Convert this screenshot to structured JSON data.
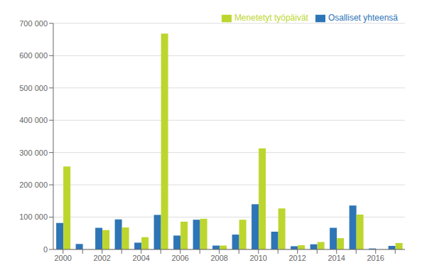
{
  "chart_data": {
    "type": "bar",
    "categories": [
      "2000",
      null,
      "2002",
      null,
      "2004",
      null,
      "2006",
      null,
      "2008",
      null,
      "2010",
      null,
      "2012",
      null,
      "2014",
      null,
      "2016",
      null
    ],
    "series": [
      {
        "name": "Osalliset yhteensä",
        "color": "#2e75b6",
        "values": [
          82000,
          17000,
          67000,
          93000,
          21000,
          107000,
          43000,
          92000,
          12000,
          46000,
          140000,
          55000,
          10000,
          16000,
          67000,
          136000,
          3000,
          11000
        ]
      },
      {
        "name": "Menetetyt työpäivät",
        "color": "#bdd62e",
        "values": [
          257000,
          0,
          60000,
          68000,
          38000,
          668000,
          86000,
          95000,
          12000,
          92000,
          313000,
          127000,
          13000,
          23000,
          35000,
          108000,
          0,
          20000
        ]
      }
    ],
    "ylim": [
      0,
      700000
    ],
    "yticks": [
      0,
      {
        "value": 100000,
        "label": "100 000"
      },
      {
        "value": 200000,
        "label": "200 000"
      },
      {
        "value": 300000,
        "label": "300 000"
      },
      {
        "value": 400000,
        "label": "400 000"
      },
      {
        "value": 500000,
        "label": "500 000"
      },
      {
        "value": 600000,
        "label": "600 000"
      },
      {
        "value": 700000,
        "label": "700 000"
      }
    ],
    "grid": true,
    "legend": "upper right"
  }
}
